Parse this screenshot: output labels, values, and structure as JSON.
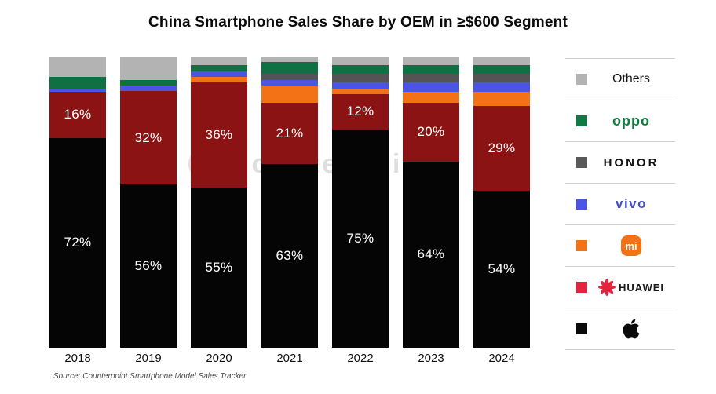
{
  "title": "China Smartphone Sales Share by OEM in ≥$600 Segment",
  "source_note": "Source: Counterpoint Smartphone Model Sales Tracker",
  "watermark": "Counterpoint",
  "chart_data": {
    "type": "bar",
    "subtype": "stacked-100-percent",
    "title": "China Smartphone Sales Share by OEM in ≥$600 Segment",
    "categories": [
      "2018",
      "2019",
      "2020",
      "2021",
      "2022",
      "2023",
      "2024"
    ],
    "unit": "%",
    "ylim": [
      0,
      100
    ],
    "grid": false,
    "legend_position": "right",
    "series": [
      {
        "name": "Others",
        "color": "#b3b3b3",
        "values": [
          7,
          8,
          3,
          2,
          3,
          3,
          3
        ],
        "show_labels": false
      },
      {
        "name": "OPPO",
        "color": "#0f7043",
        "values": [
          4,
          2,
          2,
          4,
          3,
          3,
          3
        ],
        "show_labels": false
      },
      {
        "name": "HONOR",
        "color": "#545456",
        "values": [
          0,
          0,
          0,
          2,
          3,
          3,
          3
        ],
        "show_labels": false
      },
      {
        "name": "vivo",
        "color": "#4a55e2",
        "values": [
          1,
          2,
          2,
          2,
          2,
          3,
          3
        ],
        "show_labels": false
      },
      {
        "name": "Mi",
        "color": "#f37216",
        "values": [
          0,
          0,
          2,
          6,
          2,
          4,
          5
        ],
        "show_labels": false
      },
      {
        "name": "HUAWEI",
        "color": "#8c1313",
        "values": [
          16,
          32,
          36,
          21,
          12,
          20,
          29
        ],
        "show_labels": true
      },
      {
        "name": "Apple",
        "color": "#050505",
        "values": [
          72,
          56,
          55,
          63,
          75,
          64,
          54
        ],
        "show_labels": true
      }
    ],
    "visible_segment_labels": {
      "HUAWEI": [
        "16%",
        "32%",
        "36%",
        "21%",
        "12%",
        "20%",
        "29%"
      ],
      "Apple": [
        "72%",
        "56%",
        "55%",
        "63%",
        "75%",
        "64%",
        "54%"
      ]
    }
  },
  "legend": {
    "items": [
      {
        "id": "others",
        "label": "Others",
        "swatch_color": "#b3b3b3"
      },
      {
        "id": "oppo",
        "label": "oppo",
        "swatch_color": "#0f7a43"
      },
      {
        "id": "honor",
        "label": "HONOR",
        "swatch_color": "#595959"
      },
      {
        "id": "vivo",
        "label": "vivo",
        "swatch_color": "#4a55e2"
      },
      {
        "id": "mi",
        "label": "mi",
        "swatch_color": "#f37216"
      },
      {
        "id": "huawei",
        "label": "HUAWEI",
        "swatch_color": "#e6233d"
      },
      {
        "id": "apple",
        "label": "",
        "swatch_color": "#0a0a0a"
      }
    ]
  }
}
